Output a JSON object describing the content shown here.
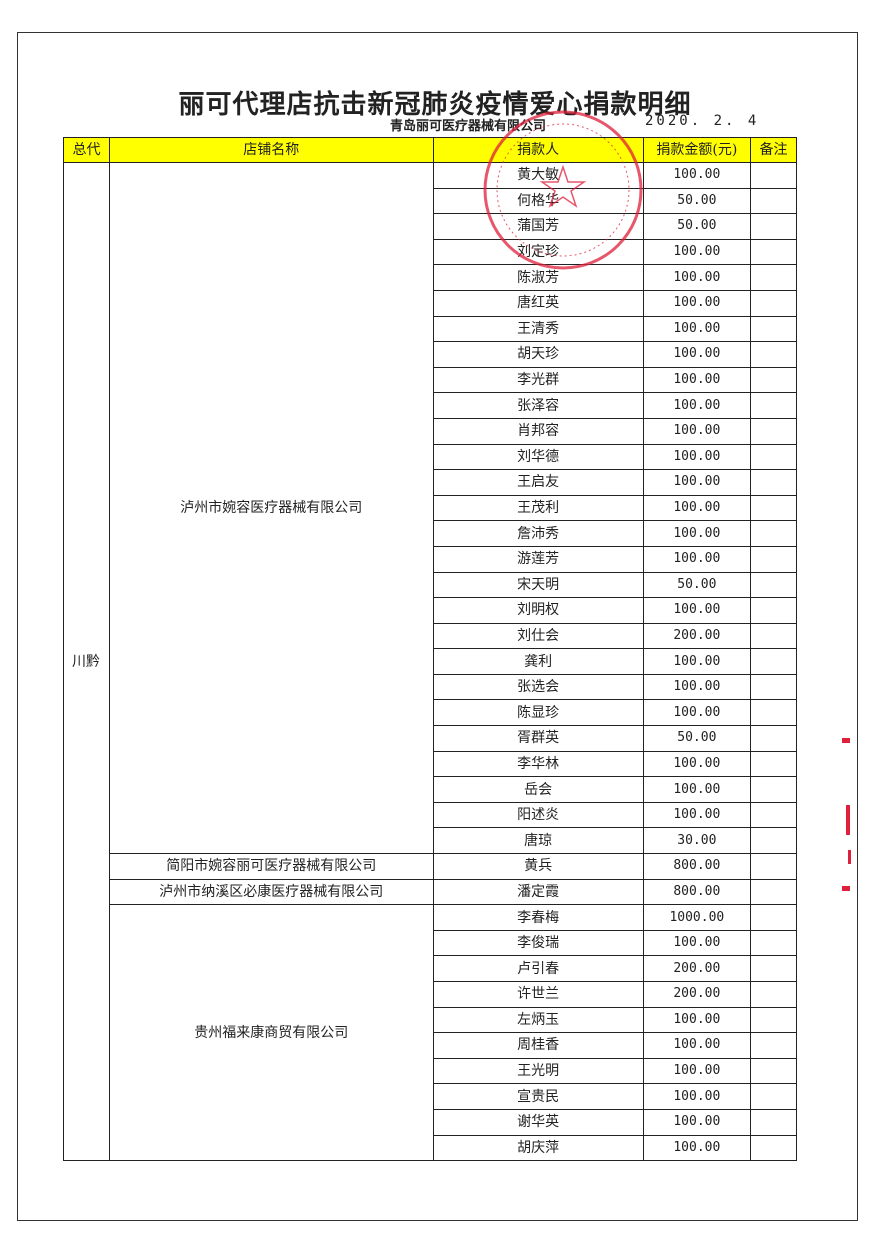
{
  "document": {
    "title": "丽可代理店抗击新冠肺炎疫情爱心捐款明细",
    "company": "青岛丽可医疗器械有限公司",
    "date": "2020. 2. 4",
    "stamp_color": "#e0203a",
    "header_color": "#ffff00"
  },
  "table": {
    "headers": [
      "总代",
      "店铺名称",
      "捐款人",
      "捐款金额(元)",
      "备注"
    ],
    "region": "川黔",
    "groups": [
      {
        "store": "泸州市婉容医疗器械有限公司",
        "donors": [
          {
            "name": "黄大敏",
            "amount": "100.00"
          },
          {
            "name": "何格华",
            "amount": "50.00"
          },
          {
            "name": "蒲国芳",
            "amount": "50.00"
          },
          {
            "name": "刘定珍",
            "amount": "100.00"
          },
          {
            "name": "陈淑芳",
            "amount": "100.00"
          },
          {
            "name": "唐红英",
            "amount": "100.00"
          },
          {
            "name": "王清秀",
            "amount": "100.00"
          },
          {
            "name": "胡天珍",
            "amount": "100.00"
          },
          {
            "name": "李光群",
            "amount": "100.00"
          },
          {
            "name": "张泽容",
            "amount": "100.00"
          },
          {
            "name": "肖邦容",
            "amount": "100.00"
          },
          {
            "name": "刘华德",
            "amount": "100.00"
          },
          {
            "name": "王启友",
            "amount": "100.00"
          },
          {
            "name": "王茂利",
            "amount": "100.00"
          },
          {
            "name": "詹沛秀",
            "amount": "100.00"
          },
          {
            "name": "游莲芳",
            "amount": "100.00"
          },
          {
            "name": "宋天明",
            "amount": "50.00"
          },
          {
            "name": "刘明权",
            "amount": "100.00"
          },
          {
            "name": "刘仕会",
            "amount": "200.00"
          },
          {
            "name": "龚利",
            "amount": "100.00"
          },
          {
            "name": "张选会",
            "amount": "100.00"
          },
          {
            "name": "陈显珍",
            "amount": "100.00"
          },
          {
            "name": "胥群英",
            "amount": "50.00"
          },
          {
            "name": "李华林",
            "amount": "100.00"
          },
          {
            "name": "岳会",
            "amount": "100.00"
          },
          {
            "name": "阳述炎",
            "amount": "100.00"
          },
          {
            "name": "唐琼",
            "amount": "30.00"
          }
        ]
      },
      {
        "store": "简阳市婉容丽可医疗器械有限公司",
        "donors": [
          {
            "name": "黄兵",
            "amount": "800.00"
          }
        ]
      },
      {
        "store": "泸州市纳溪区必康医疗器械有限公司",
        "donors": [
          {
            "name": "潘定霞",
            "amount": "800.00"
          }
        ]
      },
      {
        "store": "贵州福来康商贸有限公司",
        "donors": [
          {
            "name": "李春梅",
            "amount": "1000.00"
          },
          {
            "name": "李俊瑞",
            "amount": "100.00"
          },
          {
            "name": "卢引春",
            "amount": "200.00"
          },
          {
            "name": "许世兰",
            "amount": "200.00"
          },
          {
            "name": "左炳玉",
            "amount": "100.00"
          },
          {
            "name": "周桂香",
            "amount": "100.00"
          },
          {
            "name": "王光明",
            "amount": "100.00"
          },
          {
            "name": "宣贵民",
            "amount": "100.00"
          },
          {
            "name": "谢华英",
            "amount": "100.00"
          },
          {
            "name": "胡庆萍",
            "amount": "100.00"
          }
        ]
      }
    ]
  }
}
